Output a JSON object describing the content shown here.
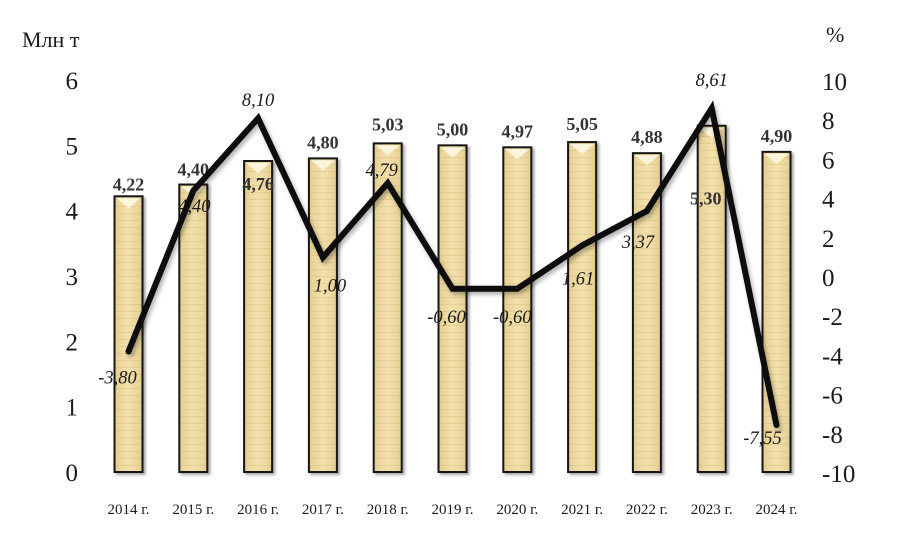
{
  "chart_data": {
    "type": "bar",
    "subtype": "bar+line combo",
    "title": "",
    "categories": [
      "2014 г.",
      "2015 г.",
      "2016 г.",
      "2017 г.",
      "2018 г.",
      "2019 г.",
      "2020 г.",
      "2021 г.",
      "2022 г.",
      "2023 г.",
      "2024 г."
    ],
    "series": [
      {
        "name": "bars-mln-t",
        "type": "bar",
        "axis": "left",
        "values": [
          4.22,
          4.4,
          4.76,
          4.8,
          5.03,
          5.0,
          4.97,
          5.05,
          4.88,
          5.3,
          4.9
        ],
        "labels": [
          "4,22",
          "4,40",
          "4,76",
          "4,80",
          "5,03",
          "5,00",
          "4,97",
          "5,05",
          "4,88",
          "5,30",
          "4,90"
        ],
        "label_offsets": [
          [
            0,
            -6
          ],
          [
            0,
            -9
          ],
          [
            0,
            29
          ],
          [
            0,
            -10
          ],
          [
            0,
            -13
          ],
          [
            0,
            -10
          ],
          [
            0,
            -10
          ],
          [
            0,
            -12
          ],
          [
            0,
            -10
          ],
          [
            -6,
            79
          ],
          [
            0,
            -10
          ]
        ]
      },
      {
        "name": "line-percent",
        "type": "line",
        "axis": "right",
        "values": [
          -3.8,
          4.4,
          8.1,
          1.0,
          4.79,
          -0.6,
          -0.6,
          1.61,
          3.37,
          8.61,
          -7.55
        ],
        "labels": [
          "-3,80",
          "4,40",
          "8,10",
          "1,00",
          "4,79",
          "-0,60",
          "-0,60",
          "1,61",
          "3,37",
          "8,61",
          "-7,55"
        ],
        "label_offsets": [
          [
            -11,
            32
          ],
          [
            1,
            21
          ],
          [
            0,
            -12
          ],
          [
            7,
            34
          ],
          [
            -6,
            -7
          ],
          [
            -6,
            34
          ],
          [
            -5,
            34
          ],
          [
            -4,
            39
          ],
          [
            -9,
            37
          ],
          [
            0,
            -22
          ],
          [
            -14,
            19
          ]
        ]
      }
    ],
    "left_axis": {
      "title": "Млн т",
      "tick_labels": [
        "0",
        "1",
        "2",
        "3",
        "4",
        "5",
        "6"
      ],
      "tick_values": [
        0,
        1,
        2,
        3,
        4,
        5,
        6
      ],
      "range": [
        0,
        6
      ]
    },
    "right_axis": {
      "title": "%",
      "tick_labels": [
        "-10",
        "-8",
        "-6",
        "-4",
        "-2",
        "0",
        "2",
        "4",
        "6",
        "8",
        "10"
      ],
      "tick_values": [
        -10,
        -8,
        -6,
        -4,
        -2,
        0,
        2,
        4,
        6,
        8,
        10
      ],
      "range": [
        -10,
        10
      ]
    },
    "grid": false,
    "legend": false,
    "colors": {
      "bar_fill": "#EFD9A1",
      "bar_fill_edge": "#E0C98E",
      "bar_fill_center": "#F3E0AC",
      "bar_highlight": "#FBF5DC",
      "bar_border": "#141414",
      "line": "#0A0A0A",
      "text": "#1B1B1B",
      "background": "#FFFFFF"
    }
  }
}
